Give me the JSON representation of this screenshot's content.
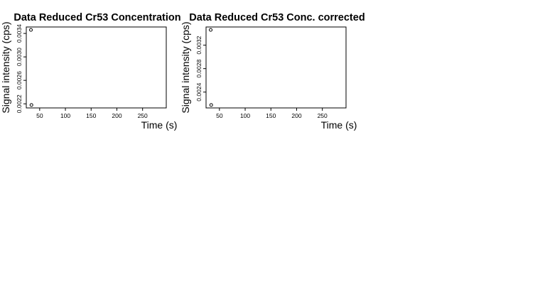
{
  "chart_data": [
    {
      "type": "scatter",
      "title": "Data Reduced Cr53 Concentration",
      "xlabel": "Time (s)",
      "ylabel": "Signal intensity (cps)",
      "xlim": [
        24,
        296
      ],
      "ylim": [
        0.00213,
        0.00351
      ],
      "xticks": [
        50,
        100,
        150,
        200,
        250
      ],
      "xtick_labels": [
        "50",
        "100",
        "150",
        "200",
        "250"
      ],
      "yticks": [
        0.0022,
        0.0026,
        0.003,
        0.0034
      ],
      "ytick_labels": [
        "0.0022",
        "0.0026",
        "0.0030",
        "0.0034"
      ],
      "grid": false,
      "points": [
        {
          "x": 33,
          "y": 0.00346
        },
        {
          "x": 34,
          "y": 0.00218
        }
      ]
    },
    {
      "type": "scatter",
      "title": "Data Reduced Cr53 Conc. corrected",
      "xlabel": "Time (s)",
      "ylabel": "Signal intensity (cps)",
      "xlim": [
        24,
        296
      ],
      "ylim": [
        0.00213,
        0.00351
      ],
      "xticks": [
        50,
        100,
        150,
        200,
        250
      ],
      "xtick_labels": [
        "50",
        "100",
        "150",
        "200",
        "250"
      ],
      "yticks": [
        0.0024,
        0.0028,
        0.0032
      ],
      "ytick_labels": [
        "0.0024",
        "0.0028",
        "0.0032"
      ],
      "grid": false,
      "points": [
        {
          "x": 33,
          "y": 0.00346
        },
        {
          "x": 34,
          "y": 0.00218
        }
      ]
    }
  ]
}
